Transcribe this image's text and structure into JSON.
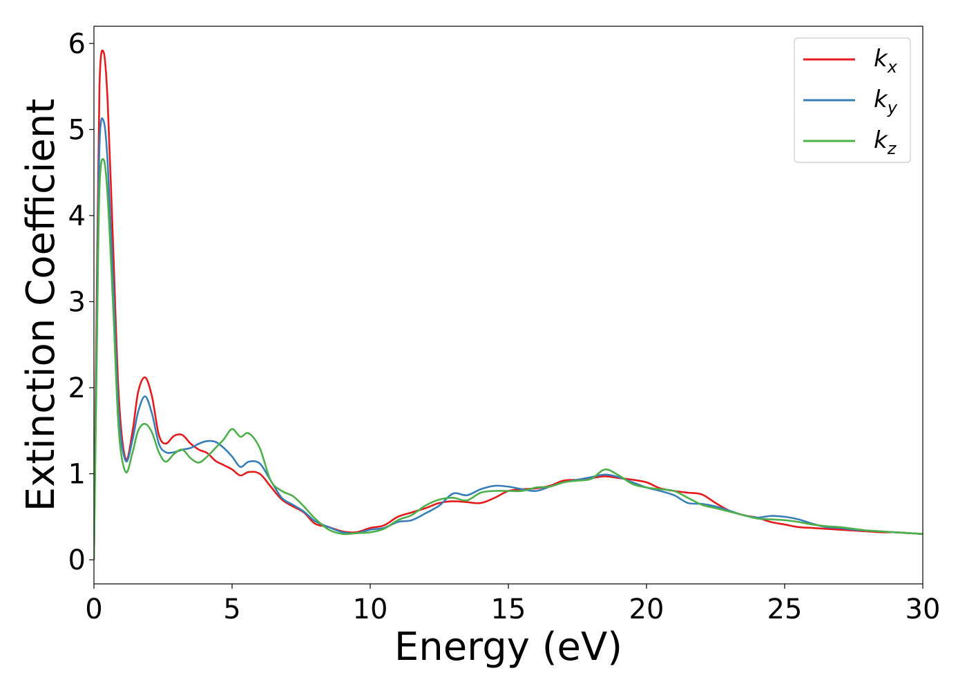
{
  "chart_data": {
    "type": "line",
    "xlabel": "Energy (eV)",
    "ylabel": "Extinction Coefficient",
    "xlim": [
      0,
      30
    ],
    "ylim": [
      -0.28,
      6.2
    ],
    "xticks": [
      0,
      5,
      10,
      15,
      20,
      25,
      30
    ],
    "yticks": [
      0,
      1,
      2,
      3,
      4,
      5,
      6
    ],
    "grid": false,
    "legend_position": "top-right",
    "series": [
      {
        "name": "k_x",
        "label_base": "k",
        "label_sub": "x",
        "color": "#e41a1c",
        "x": [
          0,
          0.1,
          0.2,
          0.35,
          0.5,
          0.7,
          0.9,
          1.15,
          1.4,
          1.6,
          1.85,
          2.1,
          2.35,
          2.6,
          2.9,
          3.2,
          3.5,
          3.8,
          4.1,
          4.4,
          4.7,
          5.0,
          5.3,
          5.6,
          6.0,
          6.4,
          6.8,
          7.2,
          7.6,
          8.0,
          8.5,
          9.0,
          9.5,
          10.0,
          10.5,
          11.0,
          11.5,
          12.0,
          12.5,
          13.0,
          13.5,
          14.0,
          14.5,
          15.0,
          15.5,
          16.0,
          16.5,
          17.0,
          17.5,
          18.0,
          18.5,
          19.0,
          19.5,
          20.0,
          20.5,
          21.0,
          21.5,
          22.0,
          22.5,
          23.0,
          23.5,
          24.0,
          24.5,
          25.0,
          25.5,
          26.0,
          26.5,
          27.0,
          27.5,
          28.0,
          28.5,
          29.0,
          29.5,
          30.0
        ],
        "y": [
          0,
          3.0,
          5.5,
          5.9,
          5.3,
          3.6,
          1.9,
          1.17,
          1.5,
          1.95,
          2.12,
          1.9,
          1.45,
          1.35,
          1.44,
          1.45,
          1.35,
          1.28,
          1.24,
          1.15,
          1.1,
          1.05,
          0.98,
          1.02,
          1.0,
          0.85,
          0.7,
          0.62,
          0.55,
          0.42,
          0.38,
          0.33,
          0.32,
          0.37,
          0.4,
          0.5,
          0.55,
          0.6,
          0.66,
          0.68,
          0.67,
          0.66,
          0.72,
          0.8,
          0.82,
          0.83,
          0.86,
          0.92,
          0.93,
          0.95,
          0.97,
          0.95,
          0.93,
          0.9,
          0.83,
          0.8,
          0.78,
          0.76,
          0.66,
          0.57,
          0.52,
          0.49,
          0.44,
          0.41,
          0.38,
          0.37,
          0.36,
          0.35,
          0.34,
          0.33,
          0.32,
          0.32,
          0.31,
          0.3
        ]
      },
      {
        "name": "k_y",
        "label_base": "k",
        "label_sub": "y",
        "color": "#377eb8",
        "x": [
          0,
          0.1,
          0.2,
          0.35,
          0.5,
          0.7,
          0.9,
          1.15,
          1.4,
          1.6,
          1.85,
          2.1,
          2.35,
          2.6,
          2.9,
          3.2,
          3.5,
          3.8,
          4.1,
          4.4,
          4.7,
          5.0,
          5.3,
          5.6,
          6.0,
          6.4,
          6.8,
          7.2,
          7.6,
          8.0,
          8.5,
          9.0,
          9.5,
          10.0,
          10.5,
          11.0,
          11.5,
          12.0,
          12.5,
          13.0,
          13.5,
          14.0,
          14.5,
          15.0,
          15.5,
          16.0,
          16.5,
          17.0,
          17.5,
          18.0,
          18.5,
          19.0,
          19.5,
          20.0,
          20.5,
          21.0,
          21.5,
          22.0,
          22.5,
          23.0,
          23.5,
          24.0,
          24.5,
          25.0,
          25.5,
          26.0,
          26.5,
          27.0,
          27.5,
          28.0,
          28.5,
          29.0,
          29.5,
          30.0
        ],
        "y": [
          0,
          2.6,
          4.8,
          5.1,
          4.6,
          3.2,
          1.7,
          1.15,
          1.4,
          1.72,
          1.9,
          1.7,
          1.35,
          1.25,
          1.25,
          1.28,
          1.3,
          1.35,
          1.38,
          1.37,
          1.3,
          1.2,
          1.08,
          1.14,
          1.12,
          0.92,
          0.72,
          0.64,
          0.56,
          0.45,
          0.38,
          0.32,
          0.31,
          0.35,
          0.37,
          0.44,
          0.46,
          0.54,
          0.63,
          0.77,
          0.75,
          0.82,
          0.86,
          0.85,
          0.82,
          0.8,
          0.85,
          0.9,
          0.93,
          0.96,
          0.99,
          0.96,
          0.9,
          0.84,
          0.8,
          0.75,
          0.66,
          0.65,
          0.62,
          0.57,
          0.52,
          0.49,
          0.51,
          0.5,
          0.47,
          0.42,
          0.38,
          0.37,
          0.35,
          0.34,
          0.33,
          0.32,
          0.31,
          0.3
        ]
      },
      {
        "name": "k_z",
        "label_base": "k",
        "label_sub": "z",
        "color": "#4daf4a",
        "x": [
          0,
          0.1,
          0.2,
          0.35,
          0.5,
          0.7,
          0.9,
          1.15,
          1.4,
          1.6,
          1.85,
          2.1,
          2.35,
          2.6,
          2.9,
          3.2,
          3.5,
          3.8,
          4.1,
          4.4,
          4.7,
          5.0,
          5.3,
          5.6,
          6.0,
          6.4,
          6.8,
          7.2,
          7.6,
          8.0,
          8.5,
          9.0,
          9.5,
          10.0,
          10.5,
          11.0,
          11.5,
          12.0,
          12.5,
          13.0,
          13.5,
          14.0,
          14.5,
          15.0,
          15.5,
          16.0,
          16.5,
          17.0,
          17.5,
          18.0,
          18.5,
          19.0,
          19.5,
          20.0,
          20.5,
          21.0,
          21.5,
          22.0,
          22.5,
          23.0,
          23.5,
          24.0,
          24.5,
          25.0,
          25.5,
          26.0,
          26.5,
          27.0,
          27.5,
          28.0,
          28.5,
          29.0,
          29.5,
          30.0
        ],
        "y": [
          0,
          2.3,
          4.3,
          4.65,
          4.2,
          2.9,
          1.5,
          1.02,
          1.25,
          1.5,
          1.58,
          1.48,
          1.25,
          1.14,
          1.23,
          1.28,
          1.18,
          1.13,
          1.2,
          1.3,
          1.4,
          1.52,
          1.43,
          1.47,
          1.3,
          0.92,
          0.8,
          0.74,
          0.62,
          0.48,
          0.35,
          0.3,
          0.31,
          0.32,
          0.36,
          0.46,
          0.52,
          0.63,
          0.7,
          0.72,
          0.69,
          0.78,
          0.8,
          0.8,
          0.8,
          0.84,
          0.85,
          0.9,
          0.92,
          0.94,
          1.05,
          0.98,
          0.88,
          0.84,
          0.82,
          0.8,
          0.72,
          0.64,
          0.6,
          0.56,
          0.52,
          0.48,
          0.47,
          0.46,
          0.44,
          0.41,
          0.39,
          0.38,
          0.36,
          0.34,
          0.33,
          0.32,
          0.31,
          0.3
        ]
      }
    ]
  }
}
